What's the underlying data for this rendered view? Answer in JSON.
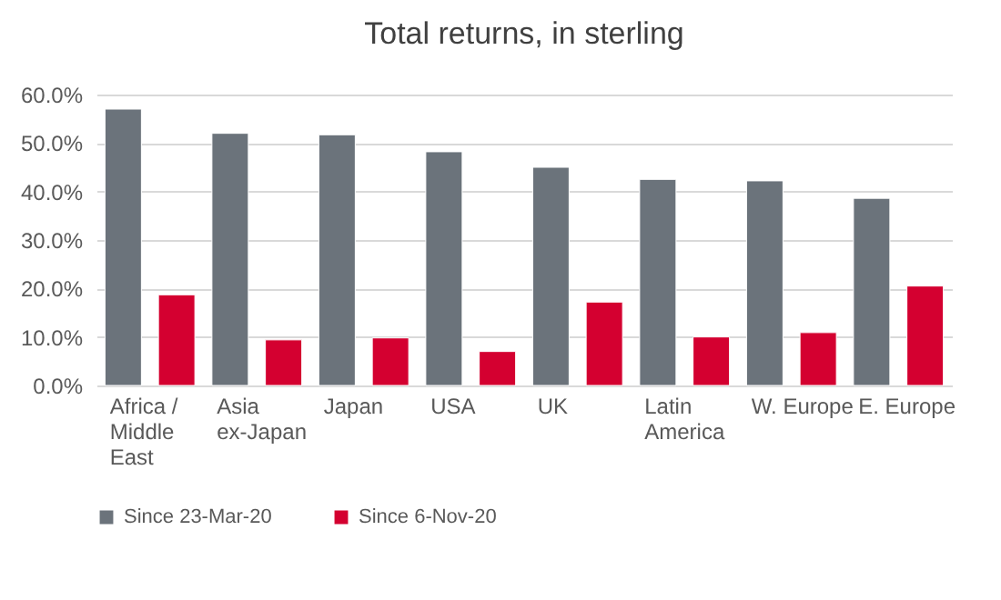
{
  "chart_data": {
    "type": "bar",
    "title": "Total returns, in sterling",
    "categories": [
      "Africa / Middle East",
      "Asia ex-Japan",
      "Japan",
      "USA",
      "UK",
      "Latin America",
      "W. Europe",
      "E. Europe"
    ],
    "series": [
      {
        "name": "Since 23-Mar-20",
        "color": "#6b737b",
        "values": [
          57.0,
          52.0,
          51.7,
          48.2,
          45.0,
          42.5,
          42.2,
          38.6
        ]
      },
      {
        "name": "Since 6-Nov-20",
        "color": "#d40030",
        "values": [
          18.7,
          9.4,
          9.8,
          7.0,
          17.2,
          10.0,
          10.9,
          20.5
        ]
      }
    ],
    "ylim": [
      0,
      60
    ],
    "yticks": [
      {
        "value": 0,
        "label": "0.0%"
      },
      {
        "value": 10,
        "label": "10.0%"
      },
      {
        "value": 20,
        "label": "20.0%"
      },
      {
        "value": 30,
        "label": "30.0%"
      },
      {
        "value": 40,
        "label": "40.0%"
      },
      {
        "value": 50,
        "label": "50.0%"
      },
      {
        "value": 60,
        "label": "60.0%"
      }
    ],
    "grid": "y",
    "legend": "bottom"
  }
}
